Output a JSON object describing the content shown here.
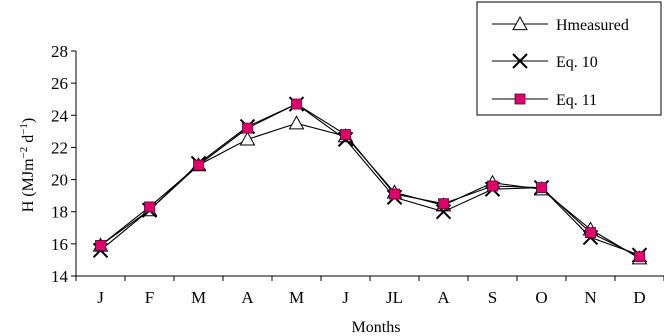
{
  "chart_data": {
    "type": "line",
    "xlabel": "Months",
    "ylabel": "H (MJm",
    "ylabel_sup1": "−2",
    "ylabel_mid": " d",
    "ylabel_sup2": "−1",
    "ylabel_end": ")",
    "categories": [
      "J",
      "F",
      "M",
      "A",
      "M",
      "J",
      "JL",
      "A",
      "S",
      "O",
      "N",
      "D"
    ],
    "ylim": [
      14,
      28
    ],
    "yticks": [
      14,
      16,
      18,
      20,
      22,
      24,
      26,
      28
    ],
    "grid": false,
    "legend_position": "top-right",
    "series": [
      {
        "name": "Hmeasured",
        "marker": "open-triangle",
        "color": "#000000",
        "values": [
          15.9,
          18.1,
          20.9,
          22.5,
          23.5,
          22.7,
          19.2,
          18.4,
          19.8,
          19.4,
          16.9,
          15.1
        ]
      },
      {
        "name": "Eq. 10",
        "marker": "x",
        "color": "#000000",
        "values": [
          15.6,
          18.1,
          21.0,
          23.3,
          24.7,
          22.5,
          18.9,
          18.0,
          19.4,
          19.5,
          16.4,
          15.3
        ]
      },
      {
        "name": "Eq. 11",
        "marker": "filled-square",
        "color": "#e0006b",
        "values": [
          15.9,
          18.3,
          20.9,
          23.2,
          24.7,
          22.8,
          19.1,
          18.5,
          19.6,
          19.5,
          16.7,
          15.2
        ]
      }
    ]
  }
}
